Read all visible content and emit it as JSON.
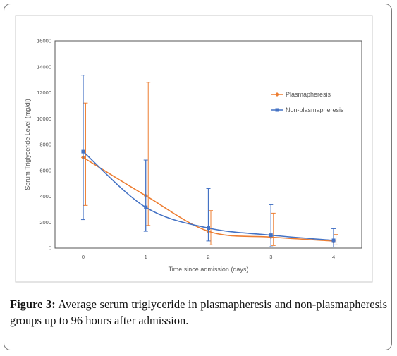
{
  "caption": {
    "label": "Figure 3:",
    "text": "Average serum triglyceride in plasmapheresis and non-plasmapheresis groups up to 96 hours after admission."
  },
  "chart_data": {
    "type": "line",
    "title": "",
    "xlabel": "Time since admission (days)",
    "ylabel": "Serum Triglyceride Level (mg/dl)",
    "xlim": [
      -0.45,
      4.45
    ],
    "ylim": [
      0,
      16000
    ],
    "x_ticks": [
      "0",
      "1",
      "2",
      "3",
      "4"
    ],
    "y_ticks": [
      "0",
      "2000",
      "4000",
      "6000",
      "8000",
      "10000",
      "12000",
      "14000",
      "16000"
    ],
    "legend_position": "top-right",
    "grid": false,
    "series": [
      {
        "name": "Plasmapheresis",
        "color": "#ED7D31",
        "marker": "diamond",
        "x": [
          0,
          1,
          2,
          3,
          4
        ],
        "values": [
          7000,
          4050,
          1300,
          850,
          550
        ],
        "err_low": [
          3300,
          1750,
          250,
          200,
          250
        ],
        "err_high": [
          11200,
          12800,
          2900,
          2700,
          1050
        ]
      },
      {
        "name": "Non-plasmapheresis",
        "color": "#4472C4",
        "marker": "square",
        "x": [
          0,
          1,
          2,
          3,
          4
        ],
        "values": [
          7450,
          3150,
          1550,
          1000,
          600
        ],
        "err_low": [
          2200,
          1300,
          550,
          100,
          80
        ],
        "err_high": [
          13350,
          6800,
          4600,
          3350,
          1500
        ]
      }
    ]
  }
}
